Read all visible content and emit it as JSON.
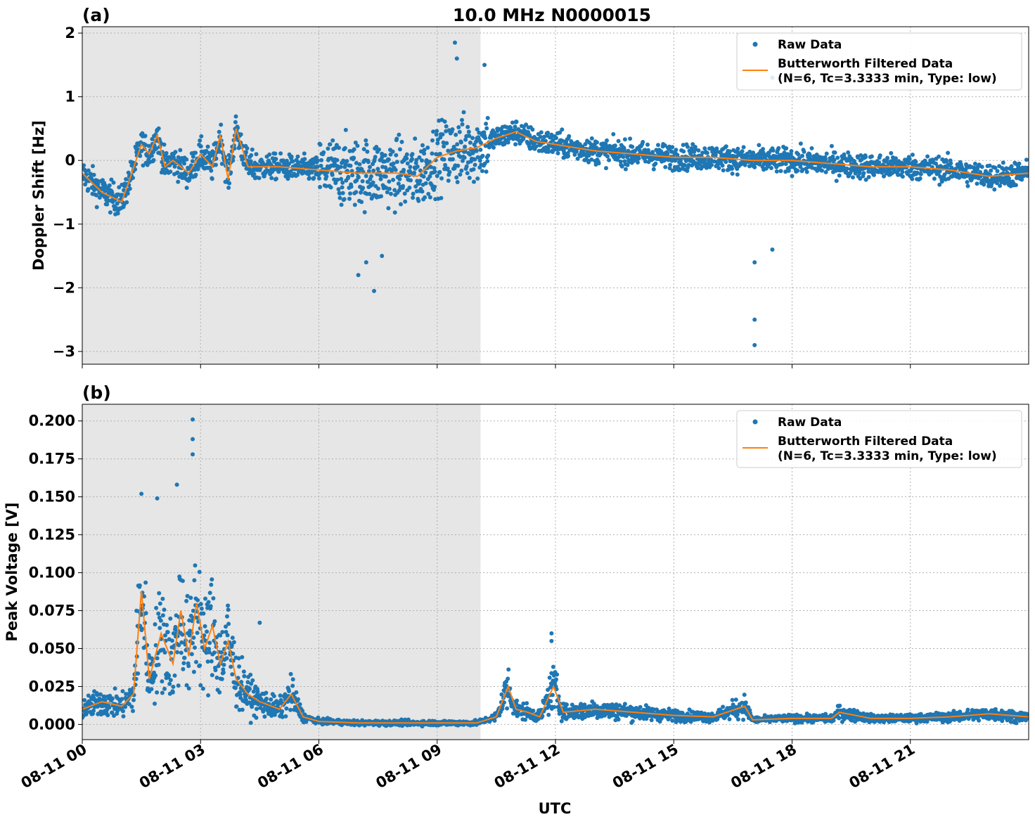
{
  "chart_data": {
    "type": "scatter",
    "title": "10.0 MHz N0000015",
    "xlabel": "UTC",
    "x_range": [
      "08-11 00",
      "08-11 24"
    ],
    "x_ticks": [
      "08-11 00",
      "08-11 03",
      "08-11 06",
      "08-11 09",
      "08-11 12",
      "08-11 15",
      "08-11 18",
      "08-11 21"
    ],
    "x_tick_hours": [
      0,
      3,
      6,
      9,
      12,
      15,
      18,
      21
    ],
    "shaded_hours": [
      0,
      10.1
    ],
    "grid": true,
    "legend_placement": "top-right",
    "colors": {
      "raw": "#1f77b4",
      "filtered": "#ff7f0e",
      "shade": "#e6e6e6",
      "grid": "#b0b0b0"
    },
    "panels": [
      {
        "label": "(a)",
        "ylabel": "Doppler Shift [Hz]",
        "ylim": [
          -3.2,
          2.1
        ],
        "y_ticks": [
          2,
          1,
          0,
          -1,
          -2,
          -3
        ],
        "y_tick_labels": [
          "2",
          "1",
          "0",
          "−1",
          "−2",
          "−3"
        ],
        "legend": {
          "raw": "Raw Data",
          "filtered_line1": "Butterworth Filtered Data",
          "filtered_line2": "(N=6, Tc=3.3333 min, Type: low)"
        },
        "filtered_x": [
          0,
          0.5,
          1.0,
          1.2,
          1.5,
          1.7,
          1.9,
          2.1,
          2.3,
          2.7,
          3.0,
          3.3,
          3.5,
          3.7,
          3.9,
          4.2,
          5.0,
          6.0,
          7.0,
          8.0,
          8.5,
          9.0,
          9.5,
          10.0,
          10.5,
          11.0,
          11.5,
          12.0,
          13.0,
          14.0,
          15.0,
          16.0,
          17.0,
          18.0,
          19.0,
          20.0,
          21.0,
          22.0,
          23.0,
          24.0
        ],
        "filtered_y": [
          -0.2,
          -0.5,
          -0.65,
          -0.3,
          0.25,
          0.1,
          0.4,
          -0.1,
          0.0,
          -0.2,
          0.1,
          -0.1,
          0.4,
          -0.3,
          0.5,
          -0.1,
          -0.1,
          -0.15,
          -0.2,
          -0.2,
          -0.25,
          0.05,
          0.15,
          0.2,
          0.35,
          0.45,
          0.3,
          0.25,
          0.15,
          0.1,
          0.05,
          0.05,
          0.0,
          0.0,
          -0.05,
          -0.1,
          -0.1,
          -0.15,
          -0.25,
          -0.2
        ],
        "outliers_x": [
          9.45,
          9.5,
          10.2,
          7.0,
          7.2,
          7.4,
          7.6,
          17.05,
          17.05,
          17.05,
          17.5,
          17.5
        ],
        "outliers_y": [
          1.85,
          1.6,
          1.5,
          -1.8,
          -1.6,
          -2.05,
          -1.5,
          -2.9,
          -2.5,
          -1.6,
          1.3,
          -1.4
        ]
      },
      {
        "label": "(b)",
        "ylabel": "Peak Voltage [V]",
        "ylim": [
          -0.01,
          0.211
        ],
        "y_ticks": [
          0.0,
          0.025,
          0.05,
          0.075,
          0.1,
          0.125,
          0.15,
          0.175,
          0.2
        ],
        "y_tick_labels": [
          "0.000",
          "0.025",
          "0.050",
          "0.075",
          "0.100",
          "0.125",
          "0.150",
          "0.175",
          "0.200"
        ],
        "legend": {
          "raw": "Raw Data",
          "filtered_line1": "Butterworth Filtered Data",
          "filtered_line2": "(N=6, Tc=3.3333 min, Type: low)"
        },
        "filtered_x": [
          0,
          0.5,
          1.0,
          1.3,
          1.5,
          1.7,
          2.0,
          2.3,
          2.5,
          2.7,
          2.9,
          3.1,
          3.3,
          3.5,
          3.7,
          3.9,
          4.2,
          4.5,
          5.0,
          5.3,
          5.6,
          6.0,
          7.0,
          8.0,
          9.0,
          10.0,
          10.5,
          10.8,
          11.0,
          11.3,
          11.6,
          11.95,
          12.2,
          13.0,
          14.0,
          15.0,
          16.0,
          16.8,
          17.0,
          18.0,
          19.0,
          19.2,
          20.0,
          21.0,
          22.0,
          23.0,
          24.0
        ],
        "filtered_y": [
          0.01,
          0.015,
          0.012,
          0.02,
          0.088,
          0.03,
          0.06,
          0.04,
          0.075,
          0.045,
          0.08,
          0.05,
          0.065,
          0.04,
          0.055,
          0.03,
          0.02,
          0.015,
          0.01,
          0.02,
          0.005,
          0.002,
          0.001,
          0.001,
          0.001,
          0.001,
          0.005,
          0.025,
          0.01,
          0.008,
          0.005,
          0.025,
          0.008,
          0.01,
          0.008,
          0.006,
          0.005,
          0.012,
          0.003,
          0.004,
          0.004,
          0.008,
          0.004,
          0.004,
          0.005,
          0.007,
          0.005
        ],
        "outliers_x": [
          2.8,
          2.8,
          2.8,
          2.4,
          1.5,
          1.9,
          4.5,
          11.9,
          11.9
        ],
        "outliers_y": [
          0.201,
          0.188,
          0.178,
          0.158,
          0.152,
          0.149,
          0.067,
          0.06,
          0.055
        ]
      }
    ]
  }
}
